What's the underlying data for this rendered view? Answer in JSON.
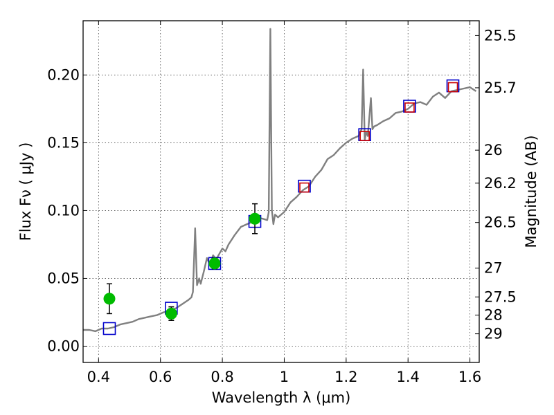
{
  "chart_data": {
    "type": "scatter",
    "xlabel": "Wavelength  λ (μm)",
    "ylabel": "Flux  Fν  ( μJy )",
    "ylabel_right": "Magnitude (AB)",
    "xlim": [
      0.35,
      1.63
    ],
    "ylim": [
      -0.012,
      0.24
    ],
    "grid": true,
    "x_ticks": [
      {
        "value": 0.4,
        "label": "0.4"
      },
      {
        "value": 0.6,
        "label": "0.6"
      },
      {
        "value": 0.8,
        "label": "0.8"
      },
      {
        "value": 1.0,
        "label": "1"
      },
      {
        "value": 1.2,
        "label": "1.2"
      },
      {
        "value": 1.4,
        "label": "1.4"
      },
      {
        "value": 1.6,
        "label": "1.6"
      }
    ],
    "y_ticks": [
      {
        "value": 0.0,
        "label": "0.00"
      },
      {
        "value": 0.05,
        "label": "0.05"
      },
      {
        "value": 0.1,
        "label": "0.10"
      },
      {
        "value": 0.15,
        "label": "0.15"
      },
      {
        "value": 0.2,
        "label": "0.20"
      }
    ],
    "mag_ticks": [
      {
        "value": 25.5,
        "label": "25.5"
      },
      {
        "value": 25.7,
        "label": "25.7"
      },
      {
        "value": 26.0,
        "label": "26"
      },
      {
        "value": 26.2,
        "label": "26.2"
      },
      {
        "value": 26.5,
        "label": "26.5"
      },
      {
        "value": 27.0,
        "label": "27"
      },
      {
        "value": 27.5,
        "label": "27.5"
      },
      {
        "value": 28.0,
        "label": "28"
      },
      {
        "value": 29.0,
        "label": "29"
      }
    ],
    "series": [
      {
        "kind": "line",
        "color": "#808080",
        "x": [
          0.35,
          0.37,
          0.39,
          0.41,
          0.43,
          0.45,
          0.47,
          0.49,
          0.51,
          0.53,
          0.55,
          0.57,
          0.59,
          0.61,
          0.63,
          0.65,
          0.67,
          0.69,
          0.7,
          0.705,
          0.712,
          0.718,
          0.725,
          0.73,
          0.74,
          0.75,
          0.76,
          0.77,
          0.78,
          0.79,
          0.8,
          0.81,
          0.82,
          0.84,
          0.86,
          0.88,
          0.9,
          0.91,
          0.93,
          0.945,
          0.95,
          0.955,
          0.96,
          0.965,
          0.97,
          0.98,
          1.0,
          1.02,
          1.04,
          1.06,
          1.08,
          1.1,
          1.12,
          1.14,
          1.16,
          1.18,
          1.2,
          1.22,
          1.24,
          1.25,
          1.255,
          1.26,
          1.265,
          1.27,
          1.28,
          1.285,
          1.29,
          1.3,
          1.32,
          1.34,
          1.36,
          1.38,
          1.4,
          1.42,
          1.44,
          1.46,
          1.48,
          1.5,
          1.52,
          1.54,
          1.56,
          1.58,
          1.6,
          1.62
        ],
        "y": [
          0.012,
          0.012,
          0.011,
          0.013,
          0.013,
          0.014,
          0.016,
          0.017,
          0.018,
          0.02,
          0.021,
          0.022,
          0.023,
          0.025,
          0.026,
          0.028,
          0.031,
          0.034,
          0.036,
          0.04,
          0.087,
          0.045,
          0.05,
          0.046,
          0.055,
          0.065,
          0.06,
          0.067,
          0.064,
          0.068,
          0.072,
          0.07,
          0.075,
          0.082,
          0.088,
          0.09,
          0.092,
          0.095,
          0.094,
          0.093,
          0.099,
          0.234,
          0.1,
          0.09,
          0.097,
          0.095,
          0.099,
          0.106,
          0.11,
          0.115,
          0.118,
          0.125,
          0.13,
          0.138,
          0.141,
          0.146,
          0.15,
          0.153,
          0.155,
          0.16,
          0.204,
          0.152,
          0.158,
          0.155,
          0.183,
          0.16,
          0.162,
          0.163,
          0.166,
          0.168,
          0.172,
          0.173,
          0.175,
          0.179,
          0.18,
          0.178,
          0.184,
          0.187,
          0.183,
          0.188,
          0.189,
          0.19,
          0.191,
          0.188
        ]
      },
      {
        "kind": "marker",
        "marker": "open-square",
        "color": "#0000cc",
        "x": [
          0.435,
          0.635,
          0.775,
          0.905,
          1.065,
          1.26,
          1.405,
          1.545
        ],
        "y": [
          0.013,
          0.028,
          0.061,
          0.092,
          0.118,
          0.156,
          0.177,
          0.192
        ]
      },
      {
        "kind": "marker",
        "marker": "open-square",
        "color": "#cc0000",
        "x": [
          1.065,
          1.26,
          1.405,
          1.545
        ],
        "y": [
          0.117,
          0.155,
          0.176,
          0.191
        ]
      },
      {
        "kind": "marker",
        "marker": "filled-circle",
        "color": "#00bb00",
        "x": [
          0.435,
          0.635,
          0.775,
          0.905
        ],
        "y": [
          0.035,
          0.024,
          0.061,
          0.094
        ],
        "yerr": [
          0.011,
          0.005,
          0.004,
          0.011
        ]
      }
    ]
  }
}
